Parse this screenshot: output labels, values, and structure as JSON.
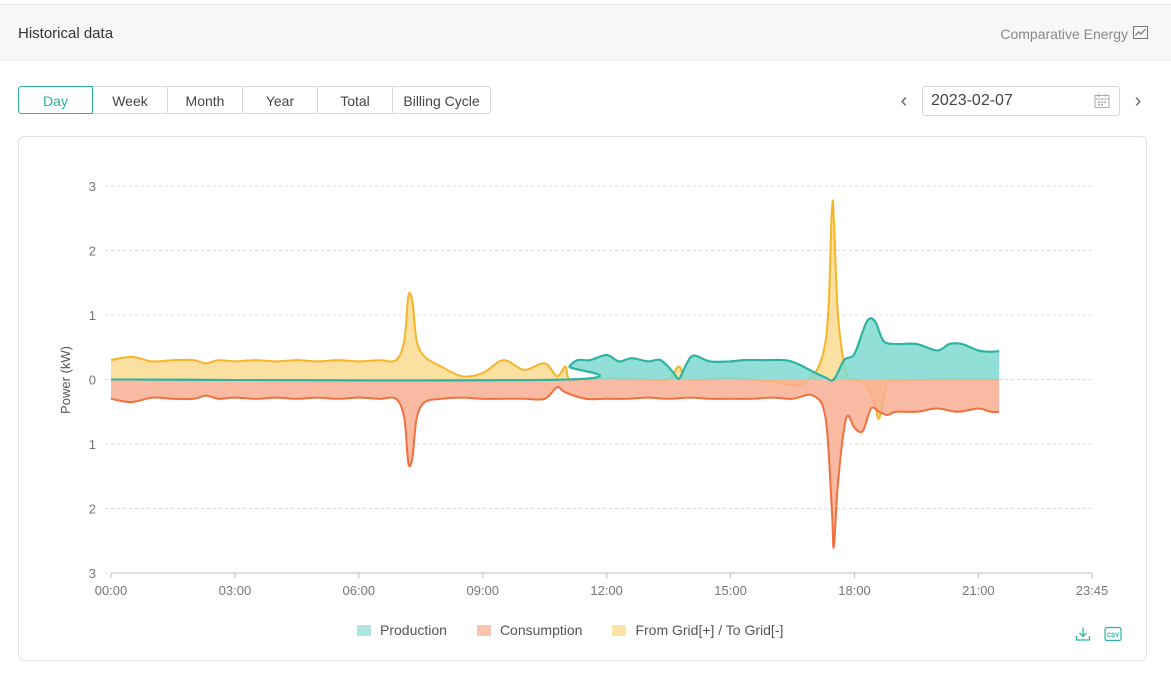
{
  "header": {
    "title": "Historical data",
    "comparative_label": "Comparative Energy",
    "comparative_icon": "line-chart-icon"
  },
  "tabs": [
    {
      "label": "Day",
      "active": true
    },
    {
      "label": "Week",
      "active": false
    },
    {
      "label": "Month",
      "active": false
    },
    {
      "label": "Year",
      "active": false
    },
    {
      "label": "Total",
      "active": false
    },
    {
      "label": "Billing Cycle",
      "active": false
    }
  ],
  "date_nav": {
    "prev": "‹",
    "next": "›",
    "value": "2023-02-07",
    "calendar_icon": "calendar-icon"
  },
  "colors": {
    "accent": "#2bb3a3",
    "production_line": "#2bb3a3",
    "production_fill": "#7fd9d0",
    "consumption_line": "#f07040",
    "consumption_fill": "#f7ae93",
    "grid_line": "#f5b52a",
    "grid_fill": "#fbd88a"
  },
  "tools": {
    "download_icon": "download-icon",
    "csv_icon": "csv-icon",
    "csv_text": "CSV"
  },
  "chart_data": {
    "type": "area",
    "ylabel": "Power  (kW)",
    "yticks": [
      "3",
      "2",
      "1",
      "0",
      "1",
      "2",
      "3"
    ],
    "ylim": [
      -3,
      3
    ],
    "xticks": [
      "00:00",
      "03:00",
      "06:00",
      "09:00",
      "12:00",
      "15:00",
      "18:00",
      "21:00",
      "23:45"
    ],
    "xlim_hours": [
      0,
      23.75
    ],
    "grid": true,
    "legend_position": "bottom",
    "series": [
      {
        "name": "Production",
        "x": [
          0,
          11.0,
          11.1,
          11.3,
          11.6,
          12.0,
          12.3,
          12.6,
          13.0,
          13.3,
          13.6,
          13.75,
          13.9,
          14.1,
          14.5,
          15.0,
          15.3,
          15.8,
          16.3,
          16.6,
          17.0,
          17.3,
          17.5,
          17.75,
          18.0,
          18.3,
          18.5,
          18.7,
          19.0,
          19.5,
          20.0,
          20.3,
          20.6,
          21.0,
          21.3,
          21.5
        ],
        "y": [
          0,
          0,
          0.2,
          0.3,
          0.3,
          0.38,
          0.28,
          0.33,
          0.28,
          0.3,
          0.12,
          0.01,
          0.2,
          0.37,
          0.28,
          0.28,
          0.3,
          0.3,
          0.3,
          0.25,
          0.12,
          0.03,
          0.0,
          0.3,
          0.4,
          0.9,
          0.9,
          0.6,
          0.55,
          0.55,
          0.45,
          0.55,
          0.55,
          0.45,
          0.43,
          0.44
        ]
      },
      {
        "name": "Consumption",
        "x": [
          0,
          0.5,
          1.0,
          1.5,
          2.0,
          2.3,
          2.6,
          3.0,
          3.5,
          4.0,
          4.5,
          5.0,
          5.5,
          6.0,
          6.5,
          6.9,
          7.1,
          7.2,
          7.3,
          7.4,
          7.6,
          8.0,
          8.5,
          9.0,
          9.5,
          10.0,
          10.5,
          10.8,
          11.0,
          11.5,
          12.0,
          12.5,
          13.0,
          13.5,
          14.0,
          14.5,
          15.0,
          15.5,
          16.0,
          16.5,
          17.0,
          17.3,
          17.45,
          17.5,
          17.6,
          17.8,
          18.0,
          18.2,
          18.4,
          18.6,
          18.8,
          19.0,
          19.5,
          20.0,
          20.5,
          21.0,
          21.3,
          21.5
        ],
        "y": [
          -0.3,
          -0.35,
          -0.28,
          -0.3,
          -0.3,
          -0.25,
          -0.3,
          -0.28,
          -0.3,
          -0.28,
          -0.3,
          -0.28,
          -0.3,
          -0.28,
          -0.3,
          -0.3,
          -0.6,
          -1.3,
          -1.2,
          -0.6,
          -0.35,
          -0.3,
          -0.28,
          -0.3,
          -0.3,
          -0.3,
          -0.3,
          -0.12,
          -0.2,
          -0.3,
          -0.3,
          -0.3,
          -0.28,
          -0.3,
          -0.28,
          -0.3,
          -0.3,
          -0.3,
          -0.28,
          -0.3,
          -0.25,
          -0.6,
          -2.0,
          -2.6,
          -1.6,
          -0.6,
          -0.75,
          -0.8,
          -0.45,
          -0.5,
          -0.55,
          -0.5,
          -0.5,
          -0.45,
          -0.5,
          -0.45,
          -0.5,
          -0.5
        ]
      },
      {
        "name": "From Grid[+] / To Grid[-]",
        "x": [
          0,
          0.5,
          1.0,
          1.5,
          2.0,
          2.3,
          2.6,
          3.0,
          3.5,
          4.0,
          4.5,
          5.0,
          5.5,
          6.0,
          6.5,
          6.9,
          7.1,
          7.2,
          7.3,
          7.4,
          7.6,
          8.0,
          8.5,
          9.0,
          9.5,
          10.0,
          10.5,
          10.8,
          11.0,
          11.1,
          11.5,
          12.0,
          13.0,
          13.5,
          13.75,
          14.0,
          15.0,
          16.0,
          16.8,
          17.3,
          17.45,
          17.5,
          17.6,
          17.8,
          18.0,
          18.3,
          18.5,
          18.6,
          18.8,
          19.0,
          20.0,
          21.0,
          21.5
        ],
        "y": [
          0.3,
          0.35,
          0.28,
          0.3,
          0.3,
          0.25,
          0.3,
          0.28,
          0.3,
          0.28,
          0.3,
          0.28,
          0.3,
          0.28,
          0.3,
          0.3,
          0.6,
          1.3,
          1.2,
          0.6,
          0.35,
          0.2,
          0.05,
          0.1,
          0.3,
          0.15,
          0.25,
          0.05,
          0.2,
          0.0,
          0.0,
          0.02,
          0.0,
          0.0,
          0.2,
          0.0,
          0.02,
          -0.03,
          -0.05,
          0.6,
          2.6,
          2.5,
          1.0,
          0.1,
          0.0,
          -0.1,
          -0.4,
          -0.6,
          -0.05,
          -0.02,
          0.0,
          0.0,
          0.0
        ]
      }
    ]
  }
}
